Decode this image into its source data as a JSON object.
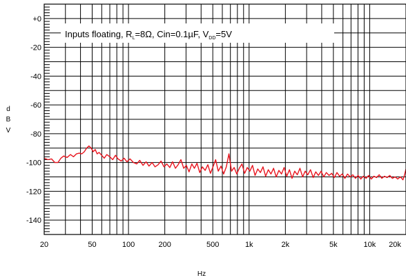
{
  "chart_data": {
    "type": "line",
    "annotation": {
      "prefix": "Inputs floating, R",
      "rl_sub": "L",
      "mid": "=8Ω, Cin=0.1µF, V",
      "vdd_sub": "DD",
      "suffix": "=5V"
    },
    "xlabel": "Hz",
    "ylabel": [
      "d",
      "B",
      "V"
    ],
    "xscale": "log",
    "xlim": [
      20,
      20000
    ],
    "ylim": [
      -150,
      10
    ],
    "grid": true,
    "x_ticks": [
      {
        "value": 20,
        "label": "20"
      },
      {
        "value": 50,
        "label": "50"
      },
      {
        "value": 100,
        "label": "100"
      },
      {
        "value": 200,
        "label": "200"
      },
      {
        "value": 500,
        "label": "500"
      },
      {
        "value": 1000,
        "label": "1k"
      },
      {
        "value": 2000,
        "label": "2k"
      },
      {
        "value": 5000,
        "label": "5k"
      },
      {
        "value": 10000,
        "label": "10k"
      },
      {
        "value": 20000,
        "label": "20k"
      }
    ],
    "y_ticks": [
      {
        "value": 0,
        "label": "+0"
      },
      {
        "value": -20,
        "label": "-20"
      },
      {
        "value": -40,
        "label": "-40"
      },
      {
        "value": -60,
        "label": "-60"
      },
      {
        "value": -80,
        "label": "-80"
      },
      {
        "value": -100,
        "label": "-100"
      },
      {
        "value": -120,
        "label": "-120"
      },
      {
        "value": -140,
        "label": "-140"
      }
    ],
    "series": [
      {
        "color": "#e8141e",
        "points": [
          [
            20,
            -97
          ],
          [
            21.5,
            -98
          ],
          [
            23,
            -97.5
          ],
          [
            24.5,
            -100
          ],
          [
            26,
            -100
          ],
          [
            27.5,
            -97
          ],
          [
            29,
            -95.5
          ],
          [
            31,
            -96.5
          ],
          [
            33,
            -94.5
          ],
          [
            35,
            -96
          ],
          [
            37,
            -94
          ],
          [
            39,
            -93.5
          ],
          [
            41,
            -94
          ],
          [
            43,
            -92.5
          ],
          [
            45,
            -90
          ],
          [
            47,
            -88.5
          ],
          [
            49,
            -90
          ],
          [
            51,
            -92.5
          ],
          [
            53,
            -91
          ],
          [
            55,
            -94
          ],
          [
            57,
            -93
          ],
          [
            60,
            -95
          ],
          [
            63,
            -97
          ],
          [
            66,
            -94.5
          ],
          [
            70,
            -96
          ],
          [
            74,
            -98
          ],
          [
            78,
            -95
          ],
          [
            82,
            -97.5
          ],
          [
            87,
            -99
          ],
          [
            92,
            -97
          ],
          [
            97,
            -99.5
          ],
          [
            103,
            -97.5
          ],
          [
            110,
            -100
          ],
          [
            117,
            -101
          ],
          [
            124,
            -98.5
          ],
          [
            132,
            -102
          ],
          [
            140,
            -99.5
          ],
          [
            148,
            -102.5
          ],
          [
            157,
            -100
          ],
          [
            166,
            -103
          ],
          [
            176,
            -101.5
          ],
          [
            186,
            -99
          ],
          [
            197,
            -103
          ],
          [
            208,
            -101
          ],
          [
            220,
            -103.5
          ],
          [
            232,
            -99.5
          ],
          [
            245,
            -104
          ],
          [
            258,
            -101.5
          ],
          [
            272,
            -98
          ],
          [
            287,
            -104
          ],
          [
            302,
            -102
          ],
          [
            318,
            -106.5
          ],
          [
            335,
            -101
          ],
          [
            352,
            -104
          ],
          [
            370,
            -100.5
          ],
          [
            390,
            -107
          ],
          [
            410,
            -103
          ],
          [
            432,
            -105.5
          ],
          [
            455,
            -101.5
          ],
          [
            478,
            -107.5
          ],
          [
            502,
            -103
          ],
          [
            528,
            -98
          ],
          [
            555,
            -106
          ],
          [
            585,
            -102.5
          ],
          [
            615,
            -108
          ],
          [
            648,
            -103
          ],
          [
            680,
            -94
          ],
          [
            716,
            -106
          ],
          [
            752,
            -103.5
          ],
          [
            790,
            -108
          ],
          [
            830,
            -104
          ],
          [
            872,
            -101
          ],
          [
            918,
            -107.5
          ],
          [
            965,
            -103.5
          ],
          [
            1015,
            -106
          ],
          [
            1068,
            -102
          ],
          [
            1120,
            -109
          ],
          [
            1180,
            -104.5
          ],
          [
            1240,
            -107
          ],
          [
            1305,
            -103
          ],
          [
            1372,
            -109.5
          ],
          [
            1443,
            -105
          ],
          [
            1518,
            -108
          ],
          [
            1596,
            -104
          ],
          [
            1678,
            -110
          ],
          [
            1765,
            -105.5
          ],
          [
            1856,
            -108
          ],
          [
            1952,
            -103.5
          ],
          [
            2053,
            -109.5
          ],
          [
            2160,
            -105
          ],
          [
            2270,
            -111
          ],
          [
            2390,
            -106
          ],
          [
            2510,
            -108.5
          ],
          [
            2640,
            -104
          ],
          [
            2780,
            -110
          ],
          [
            2920,
            -106
          ],
          [
            3070,
            -108.5
          ],
          [
            3230,
            -105
          ],
          [
            3400,
            -110.5
          ],
          [
            3570,
            -106.5
          ],
          [
            3760,
            -109
          ],
          [
            3950,
            -106
          ],
          [
            4160,
            -110
          ],
          [
            4370,
            -107
          ],
          [
            4600,
            -109
          ],
          [
            4840,
            -107.5
          ],
          [
            5090,
            -110.5
          ],
          [
            5350,
            -107
          ],
          [
            5630,
            -109.5
          ],
          [
            5920,
            -108
          ],
          [
            6230,
            -111
          ],
          [
            6550,
            -108
          ],
          [
            6890,
            -110
          ],
          [
            7240,
            -108.5
          ],
          [
            7620,
            -111
          ],
          [
            8010,
            -109
          ],
          [
            8430,
            -111.5
          ],
          [
            8860,
            -109.5
          ],
          [
            9320,
            -111
          ],
          [
            9800,
            -109
          ],
          [
            10300,
            -111.5
          ],
          [
            10840,
            -109.5
          ],
          [
            11400,
            -110.5
          ],
          [
            11990,
            -108.5
          ],
          [
            12610,
            -111
          ],
          [
            13260,
            -109.5
          ],
          [
            13950,
            -110.5
          ],
          [
            14670,
            -109
          ],
          [
            15430,
            -111
          ],
          [
            16230,
            -110
          ],
          [
            17070,
            -111.5
          ],
          [
            17950,
            -110
          ],
          [
            18880,
            -112
          ],
          [
            19400,
            -109
          ],
          [
            20000,
            -104.5
          ]
        ]
      }
    ]
  }
}
